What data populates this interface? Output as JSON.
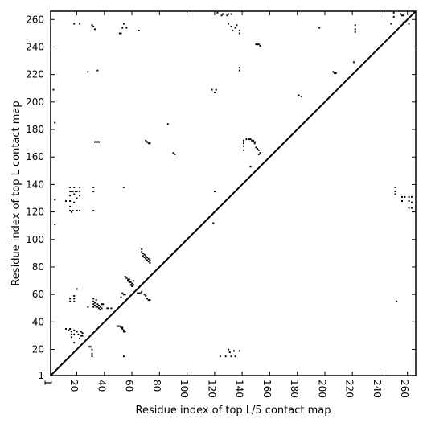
{
  "chart_data": {
    "type": "heatmap",
    "title": "",
    "xlabel": "Residue index of top L/5 contact map",
    "ylabel": "Residue index of top L contact map",
    "xlim": [
      1,
      266
    ],
    "ylim": [
      1,
      266
    ],
    "x_ticks": [
      1,
      20,
      40,
      60,
      80,
      100,
      120,
      140,
      160,
      180,
      200,
      220,
      240,
      260
    ],
    "y_ticks": [
      1,
      20,
      40,
      60,
      80,
      100,
      120,
      140,
      160,
      180,
      200,
      220,
      240,
      260
    ],
    "diagonal": true,
    "grid": false,
    "legend": "none",
    "mark_color": "#000000",
    "contacts": [
      [
        3,
        209
      ],
      [
        4,
        185
      ],
      [
        4,
        129
      ],
      [
        4,
        111
      ],
      [
        18,
        257
      ],
      [
        22,
        257
      ],
      [
        28,
        222
      ],
      [
        31,
        256
      ],
      [
        32,
        255
      ],
      [
        33,
        253
      ],
      [
        35,
        223
      ],
      [
        51,
        250
      ],
      [
        52,
        250
      ],
      [
        53,
        254
      ],
      [
        54,
        257
      ],
      [
        56,
        254
      ],
      [
        65,
        252
      ],
      [
        70,
        172
      ],
      [
        71,
        171
      ],
      [
        72,
        170
      ],
      [
        73,
        170
      ],
      [
        86,
        184
      ],
      [
        90,
        163
      ],
      [
        91,
        162
      ],
      [
        33,
        171
      ],
      [
        34,
        171
      ],
      [
        35,
        171
      ],
      [
        36,
        171
      ],
      [
        118,
        209
      ],
      [
        120,
        207
      ],
      [
        121,
        209
      ],
      [
        122,
        265
      ],
      [
        125,
        263
      ],
      [
        126,
        264
      ],
      [
        129,
        263
      ],
      [
        130,
        264
      ],
      [
        130,
        257
      ],
      [
        132,
        264
      ],
      [
        132,
        255
      ],
      [
        133,
        252
      ],
      [
        135,
        254
      ],
      [
        136,
        256
      ],
      [
        138,
        252
      ],
      [
        138,
        250
      ],
      [
        138,
        225
      ],
      [
        138,
        223
      ],
      [
        141,
        172
      ],
      [
        141,
        170
      ],
      [
        141,
        168
      ],
      [
        141,
        165
      ],
      [
        143,
        173
      ],
      [
        145,
        173
      ],
      [
        146,
        173
      ],
      [
        147,
        172
      ],
      [
        148,
        172
      ],
      [
        149,
        171
      ],
      [
        149,
        170
      ],
      [
        150,
        167
      ],
      [
        151,
        166
      ],
      [
        152,
        165
      ],
      [
        153,
        163
      ],
      [
        152,
        162
      ],
      [
        146,
        153
      ],
      [
        150,
        242
      ],
      [
        151,
        242
      ],
      [
        152,
        242
      ],
      [
        153,
        241
      ],
      [
        181,
        205
      ],
      [
        183,
        204
      ],
      [
        196,
        254
      ],
      [
        206,
        222
      ],
      [
        207,
        221
      ],
      [
        208,
        221
      ],
      [
        221,
        229
      ],
      [
        222,
        256
      ],
      [
        222,
        253
      ],
      [
        222,
        251
      ],
      [
        248,
        257
      ],
      [
        250,
        265
      ],
      [
        250,
        262
      ],
      [
        255,
        264
      ],
      [
        256,
        263
      ],
      [
        257,
        263
      ],
      [
        257,
        258
      ],
      [
        261,
        257
      ],
      [
        15,
        138
      ],
      [
        15,
        135
      ],
      [
        15,
        132
      ],
      [
        15,
        128
      ],
      [
        15,
        124
      ],
      [
        16,
        135
      ],
      [
        17,
        135
      ],
      [
        18,
        138
      ],
      [
        18,
        133
      ],
      [
        18,
        127
      ],
      [
        19,
        135
      ],
      [
        20,
        135
      ],
      [
        20,
        130
      ],
      [
        20,
        121
      ],
      [
        22,
        138
      ],
      [
        22,
        135
      ],
      [
        22,
        132
      ],
      [
        22,
        121
      ],
      [
        15,
        121
      ],
      [
        16,
        120
      ],
      [
        17,
        121
      ],
      [
        12,
        128
      ],
      [
        32,
        138
      ],
      [
        32,
        135
      ],
      [
        32,
        121
      ],
      [
        54,
        138
      ],
      [
        118,
        118
      ],
      [
        119,
        112
      ],
      [
        120,
        135
      ],
      [
        251,
        138
      ],
      [
        251,
        135
      ],
      [
        251,
        133
      ],
      [
        252,
        55
      ],
      [
        256,
        131
      ],
      [
        258,
        131
      ],
      [
        261,
        131
      ],
      [
        263,
        131
      ],
      [
        261,
        128
      ],
      [
        263,
        127
      ],
      [
        261,
        123
      ],
      [
        263,
        123
      ],
      [
        256,
        128
      ],
      [
        12,
        35
      ],
      [
        15,
        35
      ],
      [
        16,
        33
      ],
      [
        16,
        29
      ],
      [
        18,
        34
      ],
      [
        18,
        31
      ],
      [
        18,
        25
      ],
      [
        20,
        33
      ],
      [
        21,
        31
      ],
      [
        22,
        28
      ],
      [
        23,
        33
      ],
      [
        23,
        30
      ],
      [
        24,
        32
      ],
      [
        24,
        30
      ],
      [
        15,
        57
      ],
      [
        15,
        55
      ],
      [
        18,
        59
      ],
      [
        18,
        57
      ],
      [
        18,
        55
      ],
      [
        20,
        64
      ],
      [
        28,
        51
      ],
      [
        29,
        22
      ],
      [
        30,
        22
      ],
      [
        31,
        20
      ],
      [
        31,
        17
      ],
      [
        31,
        15
      ],
      [
        32,
        57
      ],
      [
        32,
        55
      ],
      [
        33,
        54
      ],
      [
        32,
        53
      ],
      [
        32,
        51
      ],
      [
        33,
        52
      ],
      [
        34,
        51
      ],
      [
        34,
        56
      ],
      [
        35,
        53
      ],
      [
        35,
        51
      ],
      [
        36,
        50
      ],
      [
        36,
        52
      ],
      [
        37,
        51
      ],
      [
        37,
        49
      ],
      [
        38,
        50
      ],
      [
        38,
        53
      ],
      [
        39,
        53
      ],
      [
        42,
        50
      ],
      [
        43,
        50
      ],
      [
        45,
        50
      ],
      [
        50,
        37
      ],
      [
        51,
        37
      ],
      [
        52,
        36
      ],
      [
        53,
        36
      ],
      [
        53,
        35
      ],
      [
        54,
        34
      ],
      [
        54,
        33
      ],
      [
        55,
        33
      ],
      [
        54,
        15
      ],
      [
        52,
        58
      ],
      [
        53,
        61
      ],
      [
        54,
        60
      ],
      [
        55,
        60
      ],
      [
        55,
        73
      ],
      [
        56,
        72
      ],
      [
        57,
        71
      ],
      [
        57,
        70
      ],
      [
        58,
        71
      ],
      [
        58,
        69
      ],
      [
        59,
        69
      ],
      [
        59,
        67
      ],
      [
        60,
        68
      ],
      [
        60,
        66
      ],
      [
        61,
        70
      ],
      [
        61,
        67
      ],
      [
        64,
        61
      ],
      [
        65,
        61
      ],
      [
        66,
        61
      ],
      [
        67,
        62
      ],
      [
        67,
        93
      ],
      [
        67,
        91
      ],
      [
        68,
        90
      ],
      [
        68,
        88
      ],
      [
        69,
        89
      ],
      [
        69,
        87
      ],
      [
        70,
        88
      ],
      [
        70,
        86
      ],
      [
        71,
        87
      ],
      [
        71,
        85
      ],
      [
        72,
        86
      ],
      [
        72,
        84
      ],
      [
        73,
        85
      ],
      [
        73,
        83
      ],
      [
        69,
        60
      ],
      [
        70,
        59
      ],
      [
        71,
        57
      ],
      [
        72,
        56
      ],
      [
        73,
        56
      ],
      [
        124,
        15
      ],
      [
        128,
        15
      ],
      [
        130,
        20
      ],
      [
        131,
        18
      ],
      [
        132,
        15
      ],
      [
        134,
        19
      ],
      [
        135,
        15
      ],
      [
        138,
        19
      ],
      [
        14,
        34
      ],
      [
        16,
        31
      ]
    ]
  }
}
